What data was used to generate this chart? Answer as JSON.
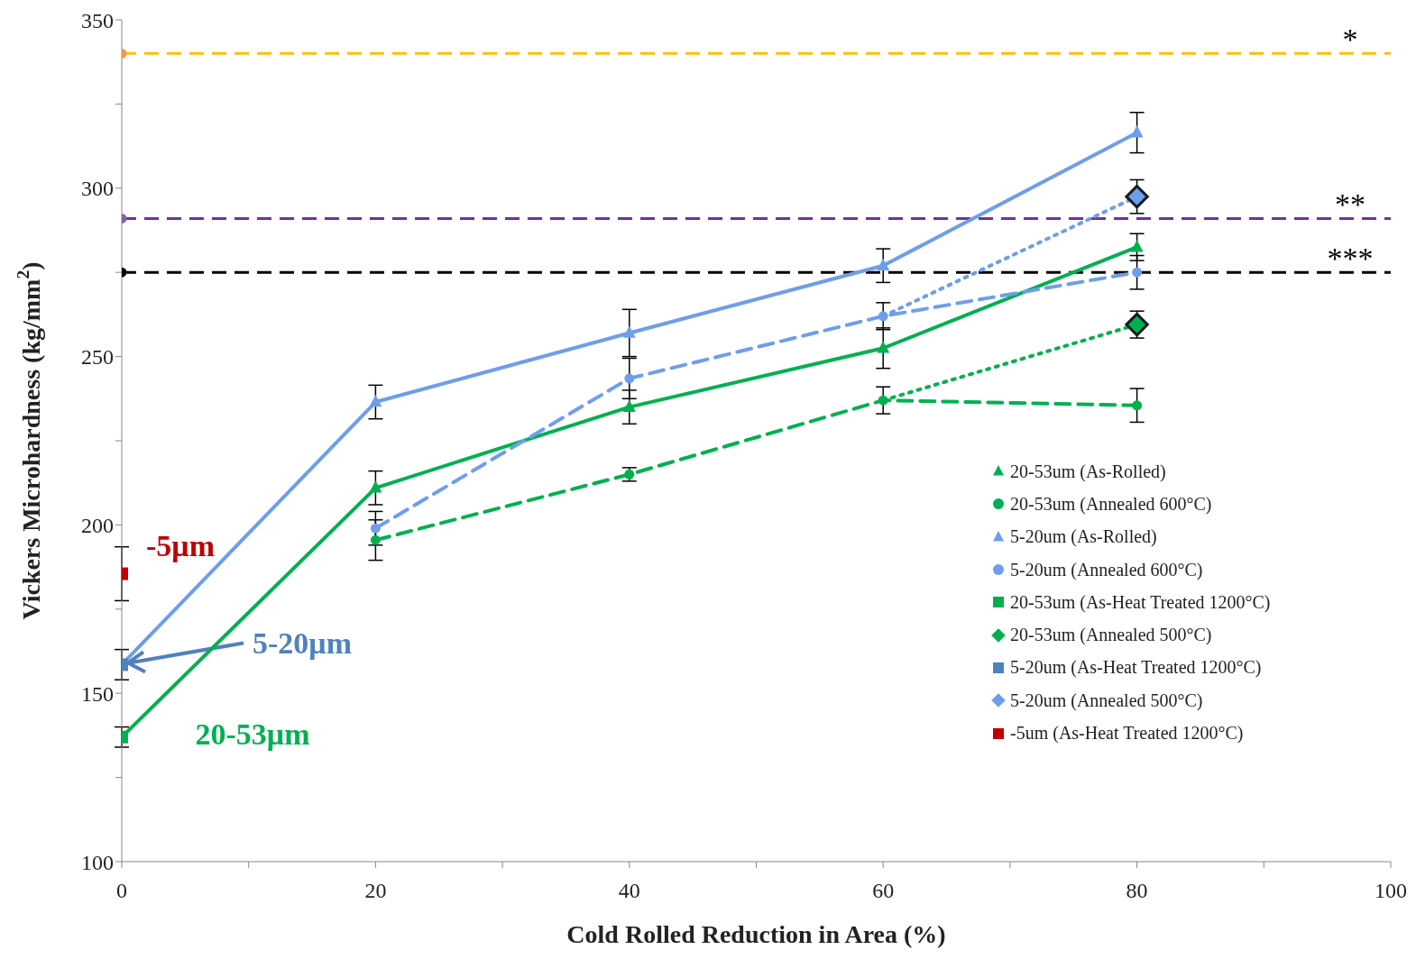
{
  "chart_data": {
    "type": "line",
    "xlabel": "Cold Rolled Reduction in Area (%)",
    "ylabel": "Vickers Microhardness (kg/mm$^{2}$)",
    "xlim": [
      0,
      100
    ],
    "xticks": [
      0,
      {
        "value": 10,
        "label": null
      },
      20,
      {
        "value": 30,
        "label": null
      },
      40,
      {
        "value": 50,
        "label": null
      },
      60,
      {
        "value": 70,
        "label": null
      },
      80,
      {
        "value": 90,
        "label": null
      },
      100
    ],
    "ylim": [
      100,
      350
    ],
    "yticks": [
      100,
      {
        "value": 125,
        "label": null
      },
      150,
      {
        "value": 175,
        "label": null
      },
      200,
      {
        "value": 225,
        "label": null
      },
      250,
      {
        "value": 275,
        "label": null
      },
      300,
      {
        "value": 325,
        "label": null
      },
      350
    ],
    "grid": false,
    "legend": "bottom right",
    "series": [
      {
        "color": "#00b050",
        "line_style": "solid",
        "x": [
          0,
          20
        ],
        "values": [
          137,
          211
        ]
      },
      {
        "color": "#6d9eeb",
        "line_style": "solid",
        "x": [
          0,
          20
        ],
        "values": [
          158.5,
          236.5
        ]
      },
      {
        "color": "#00b050",
        "line_style": "dotted",
        "x": [
          60,
          80
        ],
        "values": [
          237,
          259.5
        ]
      },
      {
        "color": "#6d9eeb",
        "line_style": "dotted",
        "x": [
          60,
          80
        ],
        "values": [
          262,
          297.5
        ]
      },
      {
        "name": "20-53um (As-Rolled)",
        "color": "#00b050",
        "line_style": "solid",
        "marker": "triangle",
        "x": [
          20,
          40,
          60,
          80
        ],
        "values": [
          211,
          235,
          252.5,
          282.5
        ],
        "errors": [
          5,
          5,
          6,
          4
        ]
      },
      {
        "name": "20-53um (Annealed 600°C)",
        "color": "#00b050",
        "line_style": "dashed",
        "marker": "circle",
        "x": [
          20,
          40,
          60,
          80
        ],
        "values": [
          195.5,
          215,
          237,
          235.5
        ],
        "errors": [
          6,
          2,
          4,
          5
        ]
      },
      {
        "name": "5-20um (As-Rolled)",
        "color": "#6d9eeb",
        "line_style": "solid",
        "marker": "triangle",
        "x": [
          20,
          40,
          60,
          80
        ],
        "values": [
          236.5,
          257,
          277,
          316.5
        ],
        "errors": [
          5,
          7,
          5,
          6
        ]
      },
      {
        "name": "5-20um (Annealed 600°C)",
        "color": "#6d9eeb",
        "line_style": "dashed",
        "marker": "circle",
        "x": [
          20,
          40,
          60,
          80
        ],
        "values": [
          199,
          243.5,
          262,
          275
        ],
        "errors": [
          5,
          6,
          4,
          5
        ]
      },
      {
        "type": "scatter",
        "name": "20-53um (As-Heat Treated 1200°C)",
        "color": "#00b050",
        "marker": "square",
        "x": [
          0
        ],
        "values": [
          137
        ],
        "errors": [
          3
        ]
      },
      {
        "type": "scatter",
        "name": "20-53um (Annealed 500°C)",
        "color": "#00b050",
        "marker": "diamond",
        "x": [
          80
        ],
        "values": [
          259.5
        ],
        "errors": [
          4
        ]
      },
      {
        "type": "scatter",
        "name": "5-20um (As-Heat Treated 1200°C)",
        "color": "#4f81bd",
        "marker": "square",
        "x": [
          0
        ],
        "values": [
          158.5
        ],
        "errors": [
          4.5
        ]
      },
      {
        "type": "scatter",
        "name": "5-20um (Annealed 500°C)",
        "color": "#6d9eeb",
        "marker": "diamond",
        "x": [
          80
        ],
        "values": [
          297.5
        ],
        "errors": [
          5
        ]
      },
      {
        "type": "scatter",
        "name": "-5um (As-Heat Treated 1200°C)",
        "color": "#c00000",
        "marker": "square",
        "x": [
          0
        ],
        "values": [
          185.5
        ],
        "errors": [
          8
        ]
      },
      {
        "type": "scatter",
        "color": "#8064a2",
        "marker": "circle",
        "x": [
          0
        ],
        "values": [
          291
        ]
      },
      {
        "type": "scatter",
        "color": "#000000",
        "marker": "circle",
        "x": [
          0
        ],
        "values": [
          275
        ]
      },
      {
        "type": "scatter",
        "color": "#f79646",
        "marker": "circle",
        "x": [
          0
        ],
        "values": [
          340
        ]
      }
    ],
    "ref_lines": [
      {
        "axis": "y",
        "value": 340,
        "label": "*",
        "color": "#ffc000",
        "line_style": "dashed"
      },
      {
        "axis": "y",
        "value": 291,
        "label": "**",
        "color": "#7030a0",
        "line_style": "dashed"
      },
      {
        "axis": "y",
        "value": 275,
        "label": "***",
        "color": "#000000",
        "line_style": "dashed"
      }
    ],
    "annotations": [
      "-5μm",
      {
        "text": "5-20μm",
        "x": 0,
        "y": 158.5
      },
      "20-53μm"
    ]
  }
}
